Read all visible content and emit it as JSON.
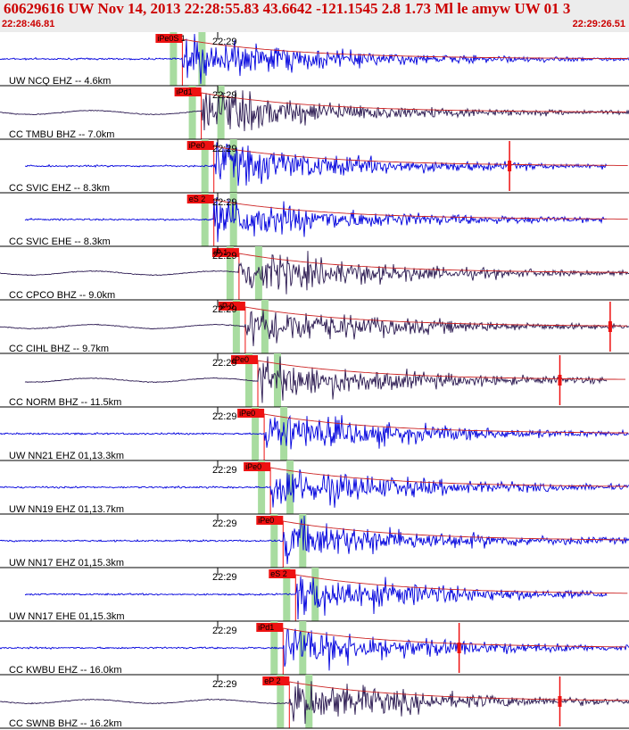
{
  "header": {
    "title": "60629616 UW Nov 14, 2013 22:28:55.83    43.6642 -121.1545  2.8 1.73 Ml le amyw UW 01    3",
    "time_start": "22:28:46.81",
    "time_end": "22:29:26.51"
  },
  "colors": {
    "background": "#ffffff",
    "header_bg": "#ececec",
    "title": "#cc0000",
    "trace_blue": "#0000dd",
    "trace_dark": "#2a1850",
    "pick_box": "#ee1111",
    "window_band": "#a8dca0",
    "theoretical_curve": "#cc2222",
    "divider": "#000000"
  },
  "tick_label": "22:29",
  "traces": [
    {
      "label": "UW NCQ EHZ -- 4.6km",
      "pick": "iPe0S 1",
      "color": "blue",
      "onset": 0.29,
      "full": true,
      "spike": null
    },
    {
      "label": "CC TMBU BHZ -- 7.0km",
      "pick": "iPd1",
      "color": "dark",
      "onset": 0.32,
      "full": true,
      "spike": null
    },
    {
      "label": "CC SVIC EHZ -- 8.3km",
      "pick": "iPe0",
      "color": "blue",
      "onset": 0.34,
      "full": false,
      "spike": 0.81
    },
    {
      "label": "CC SVIC EHE -- 8.3km",
      "pick": "eS 2",
      "color": "blue",
      "onset": 0.34,
      "full": false,
      "spike": null
    },
    {
      "label": "CC CPCO BHZ -- 9.0km",
      "pick": "iP 1",
      "color": "dark",
      "onset": 0.38,
      "full": true,
      "spike": null
    },
    {
      "label": "CC CIHL BHZ -- 9.7km",
      "pick": "iP 0",
      "color": "dark",
      "onset": 0.39,
      "full": true,
      "spike": 0.97
    },
    {
      "label": "CC NORM BHZ -- 11.5km",
      "pick": "iPe0",
      "color": "dark",
      "onset": 0.41,
      "full": false,
      "spike": 0.89
    },
    {
      "label": "UW NN21 EHZ 01,13.3km",
      "pick": "iPe0",
      "color": "blue",
      "onset": 0.42,
      "full": true,
      "spike": null
    },
    {
      "label": "UW NN19 EHZ 01,13.7km",
      "pick": "iPe0",
      "color": "blue",
      "onset": 0.43,
      "full": true,
      "spike": null
    },
    {
      "label": "UW NN17 EHZ 01,15.3km",
      "pick": "iPe0",
      "color": "blue",
      "onset": 0.45,
      "full": true,
      "spike": null
    },
    {
      "label": "UW NN17 EHE 01,15.3km",
      "pick": "eS 2",
      "color": "blue",
      "onset": 0.47,
      "full": false,
      "spike": null
    },
    {
      "label": "CC KWBU EHZ -- 16.0km",
      "pick": "iPd1",
      "color": "blue",
      "onset": 0.45,
      "full": true,
      "spike": 0.73
    },
    {
      "label": "CC SWNB BHZ -- 16.2km",
      "pick": "eP 2",
      "color": "dark",
      "onset": 0.46,
      "full": true,
      "spike": 0.89
    }
  ]
}
